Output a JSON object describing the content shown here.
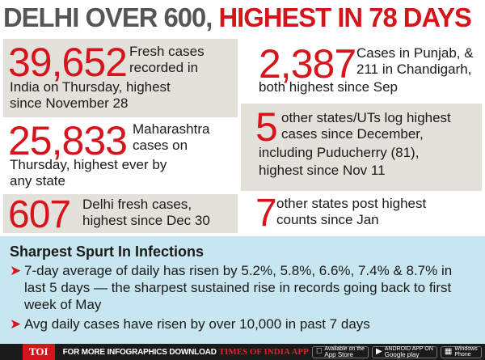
{
  "headline": {
    "part1": "DELHI OVER 600,",
    "part2": "HIGHEST IN 78 DAYS"
  },
  "cells": {
    "c1": {
      "number": "39,652",
      "line1": "Fresh cases",
      "line2": "recorded in",
      "rest1": "India on Thursday, highest",
      "rest2": "since November 28"
    },
    "c2": {
      "number": "25,833",
      "line1": "Maharashtra",
      "line2": "cases on",
      "rest1": "Thursday, highest ever by",
      "rest2": "any state"
    },
    "c3": {
      "number": "607",
      "line1": "Delhi fresh cases,",
      "line2": "highest since Dec 30"
    },
    "c4": {
      "number": "2,387",
      "line1": "Cases in Punjab, &",
      "line2": "211 in Chandigarh,",
      "rest1": "both highest since Sep"
    },
    "c5": {
      "number": "5",
      "line1": "other states/UTs log highest",
      "line2": "cases since December,",
      "rest1": "including Puducherry (81),",
      "rest2": "highest since Nov 11"
    },
    "c6": {
      "number": "7",
      "line1": "other states post highest",
      "line2": "counts since Jan"
    }
  },
  "spurt": {
    "heading": "Sharpest Spurt In Infections",
    "bullets": [
      "7-day average of daily has risen by 5.2%, 5.8%, 6.6%, 7.4% & 8.7% in last 5 days — the sharpest sustained rise in records going back to first week of May",
      "Avg daily cases have risen by over 10,000 in past 7 days"
    ]
  },
  "footer": {
    "toi": "TOI",
    "more": "FOR MORE INFOGRAPHICS DOWNLOAD",
    "brand": "TIMES OF INDIA APP",
    "appstore_small": "Available on the",
    "appstore": "App Store",
    "googleplay_small": "ANDROID APP ON",
    "googleplay": "Google play",
    "windows_small": "Windows",
    "windows": "Phone"
  },
  "colors": {
    "accent_red": "#d6141c",
    "headline_gray": "#555555",
    "panel_beige": "#e3e1db",
    "panel_blue": "#c7e6f0",
    "footer_dark": "#1a1a1a"
  }
}
